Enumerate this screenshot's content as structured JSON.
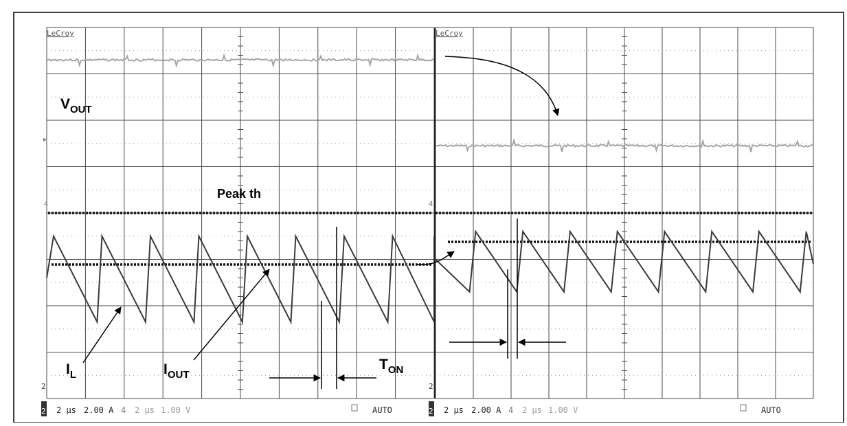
{
  "header": {
    "caption": ""
  },
  "colors": {
    "background": "#ffffff",
    "grid": "#4a4a4a",
    "trace_vout": "#a6a6a6",
    "trace_il": "#3a3a3a",
    "threshold": "#111111",
    "annotation": "#000000"
  },
  "panels": [
    {
      "brand": "LeCroy",
      "status": {
        "channel_marker": "2",
        "timebase": "2 µs",
        "ch_scale": "2.00 A",
        "trigger_icon": "4",
        "trigger_time": "2 µs",
        "trigger_level": "1.00 V",
        "mode": "AUTO"
      }
    },
    {
      "brand": "LeCroy",
      "status": {
        "channel_marker": "2",
        "timebase": "2 µs",
        "ch_scale": "2.00 A",
        "trigger_icon": "4",
        "trigger_time": "2 µs",
        "trigger_level": "1.00 V",
        "mode": "AUTO"
      }
    }
  ],
  "annotations": {
    "vout": {
      "main": "V",
      "sub": "OUT"
    },
    "peak_th": "Peak th",
    "il": {
      "main": "I",
      "sub": "L"
    },
    "iout": {
      "main": "I",
      "sub": "OUT"
    },
    "ton": {
      "main": "T",
      "sub": "ON"
    }
  },
  "chart_data": [
    {
      "type": "line",
      "title": "",
      "grid": true,
      "divisions": {
        "x": 10,
        "y": 8
      },
      "series": [
        {
          "label": "V_OUT",
          "shape": "flat with small switching spikes",
          "level_div": 7.3
        },
        {
          "label": "I_L",
          "shape": "triangular ripple",
          "cycles": 8,
          "min_div": 1.65,
          "max_div": 3.5
        },
        {
          "label": "I_OUT",
          "shape": "flat dashed",
          "level_div": 2.55
        },
        {
          "label": "Peak th",
          "shape": "flat dashed",
          "level_div": 3.6
        }
      ],
      "time_per_div": "2 µs",
      "amplitude_per_div": "2.00 A"
    },
    {
      "type": "line",
      "title": "",
      "grid": true,
      "divisions": {
        "x": 10,
        "y": 8
      },
      "series": [
        {
          "label": "V_OUT",
          "shape": "flat with small switching spikes",
          "level_div": 5.45
        },
        {
          "label": "I_L",
          "shape": "sawtooth ripple",
          "cycles": 8,
          "min_div": 2.3,
          "max_div": 3.6
        },
        {
          "label": "I_OUT",
          "shape": "flat dashed",
          "level_div": 2.9
        },
        {
          "label": "Peak th",
          "shape": "flat dashed",
          "level_div": 3.6
        }
      ],
      "time_per_div": "2 µs",
      "amplitude_per_div": "2.00 A"
    }
  ]
}
